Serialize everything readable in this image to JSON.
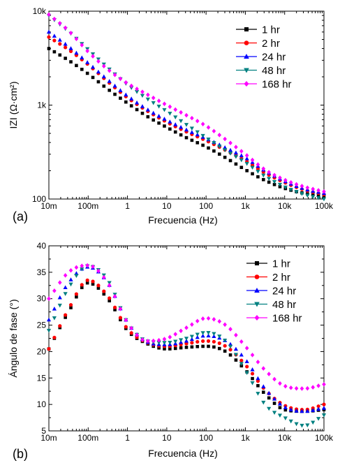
{
  "chart_data": [
    {
      "type": "scatter",
      "panel_label": "(a)",
      "title": "",
      "xlabel": "Frecuencia (Hz)",
      "ylabel": "IZI (Ω·cm²)",
      "x_scale": "log",
      "y_scale": "log",
      "xlim": [
        0.01,
        100000
      ],
      "ylim": [
        100,
        10000
      ],
      "x_ticks": [
        0.01,
        0.1,
        1,
        10,
        100,
        1000,
        10000,
        100000
      ],
      "x_tick_labels": [
        "10m",
        "100m",
        "1",
        "10",
        "100",
        "1k",
        "10k",
        "100k"
      ],
      "y_ticks": [
        100,
        1000,
        10000
      ],
      "y_tick_labels": [
        "100",
        "1k",
        "10k"
      ],
      "legend_position": "top-right",
      "series": [
        {
          "name": "1 hr",
          "color": "#000000",
          "marker": "square",
          "x": [
            0.01,
            0.0316,
            0.1,
            0.316,
            1,
            3.16,
            10,
            31.6,
            100,
            316,
            1000,
            3160,
            10000,
            31600,
            100000
          ],
          "y": [
            4000,
            3000,
            2150,
            1480,
            1050,
            760,
            580,
            450,
            360,
            275,
            205,
            158,
            130,
            115,
            108
          ]
        },
        {
          "name": "2 hr",
          "color": "#ff0000",
          "marker": "circle",
          "x": [
            0.01,
            0.0316,
            0.1,
            0.316,
            1,
            3.16,
            10,
            31.6,
            100,
            316,
            1000,
            3160,
            10000,
            31600,
            100000
          ],
          "y": [
            5300,
            3900,
            2700,
            1780,
            1200,
            870,
            660,
            520,
            420,
            330,
            255,
            190,
            150,
            125,
            112
          ]
        },
        {
          "name": "24 hr",
          "color": "#0000ff",
          "marker": "triangle-up",
          "x": [
            0.01,
            0.0316,
            0.1,
            0.316,
            1,
            3.16,
            10,
            31.6,
            100,
            316,
            1000,
            3160,
            10000,
            31600,
            100000
          ],
          "y": [
            6000,
            4200,
            2800,
            1850,
            1250,
            900,
            690,
            545,
            440,
            350,
            275,
            200,
            155,
            128,
            115
          ]
        },
        {
          "name": "48 hr",
          "color": "#008080",
          "marker": "triangle-down",
          "x": [
            0.01,
            0.0316,
            0.1,
            0.316,
            1,
            3.16,
            10,
            31.6,
            100,
            316,
            1000,
            3160,
            10000,
            31600,
            100000
          ],
          "y": [
            9000,
            6100,
            3900,
            2500,
            1650,
            1170,
            860,
            620,
            450,
            330,
            245,
            175,
            135,
            112,
            100
          ]
        },
        {
          "name": "168 hr",
          "color": "#ff00ff",
          "marker": "diamond",
          "x": [
            0.01,
            0.0316,
            0.1,
            0.316,
            1,
            3.16,
            10,
            31.6,
            100,
            316,
            1000,
            3160,
            10000,
            31600,
            100000
          ],
          "y": [
            9200,
            6200,
            3700,
            2400,
            1700,
            1300,
            1000,
            780,
            600,
            430,
            300,
            205,
            160,
            135,
            120
          ]
        }
      ]
    },
    {
      "type": "scatter",
      "panel_label": "(b)",
      "title": "",
      "xlabel": "Frecuencia (Hz)",
      "ylabel": "Ángulo de fase (°)",
      "x_scale": "log",
      "y_scale": "linear",
      "xlim": [
        0.01,
        100000
      ],
      "ylim": [
        5,
        40
      ],
      "x_ticks": [
        0.01,
        0.1,
        1,
        10,
        100,
        1000,
        10000,
        100000
      ],
      "x_tick_labels": [
        "10m",
        "100m",
        "1",
        "10",
        "100",
        "1k",
        "10k",
        "100k"
      ],
      "y_ticks": [
        5,
        10,
        15,
        20,
        25,
        30,
        35,
        40
      ],
      "y_tick_labels": [
        "5",
        "10",
        "15",
        "20",
        "25",
        "30",
        "35",
        "40"
      ],
      "legend_position": "top-right",
      "series": [
        {
          "name": "1 hr",
          "color": "#000000",
          "marker": "square",
          "x": [
            0.01,
            0.0316,
            0.1,
            0.316,
            1,
            3.16,
            10,
            31.6,
            100,
            316,
            1000,
            3160,
            10000,
            31600,
            100000
          ],
          "y": [
            20.5,
            27.5,
            33,
            30,
            24,
            21.5,
            20.5,
            20.8,
            21,
            20,
            16.5,
            12,
            9,
            8.7,
            9
          ]
        },
        {
          "name": "2 hr",
          "color": "#ff0000",
          "marker": "circle",
          "x": [
            0.01,
            0.0316,
            0.1,
            0.316,
            1,
            3.16,
            10,
            31.6,
            100,
            316,
            1000,
            3160,
            10000,
            31600,
            100000
          ],
          "y": [
            20.5,
            28,
            33.5,
            30.5,
            24.3,
            21.7,
            21,
            21.5,
            22,
            21,
            17.5,
            12.8,
            9.8,
            9,
            10
          ]
        },
        {
          "name": "24 hr",
          "color": "#0000ff",
          "marker": "triangle-up",
          "x": [
            0.01,
            0.0316,
            0.1,
            0.316,
            1,
            3.16,
            10,
            31.6,
            100,
            316,
            1000,
            3160,
            10000,
            31600,
            100000
          ],
          "y": [
            26,
            33,
            36,
            33,
            25.5,
            21.8,
            21.3,
            22,
            23,
            22,
            18.5,
            13,
            9.5,
            8.7,
            9.3
          ]
        },
        {
          "name": "48 hr",
          "color": "#008080",
          "marker": "triangle-down",
          "x": [
            0.01,
            0.0316,
            0.1,
            0.316,
            1,
            3.16,
            10,
            31.6,
            100,
            316,
            1000,
            3160,
            10000,
            31600,
            100000
          ],
          "y": [
            24,
            32,
            36.2,
            33.5,
            25.5,
            22,
            21.7,
            22.5,
            23.6,
            22,
            16.5,
            10,
            7.5,
            6,
            8
          ]
        },
        {
          "name": "168 hr",
          "color": "#ff00ff",
          "marker": "diamond",
          "x": [
            0.01,
            0.0316,
            0.1,
            0.316,
            1,
            3.16,
            10,
            31.6,
            100,
            316,
            1000,
            3160,
            10000,
            31600,
            100000
          ],
          "y": [
            30,
            35,
            36.3,
            33,
            25.5,
            22,
            22.5,
            24.5,
            26.3,
            25,
            21,
            16.5,
            13.5,
            13,
            13.8
          ]
        }
      ]
    }
  ]
}
